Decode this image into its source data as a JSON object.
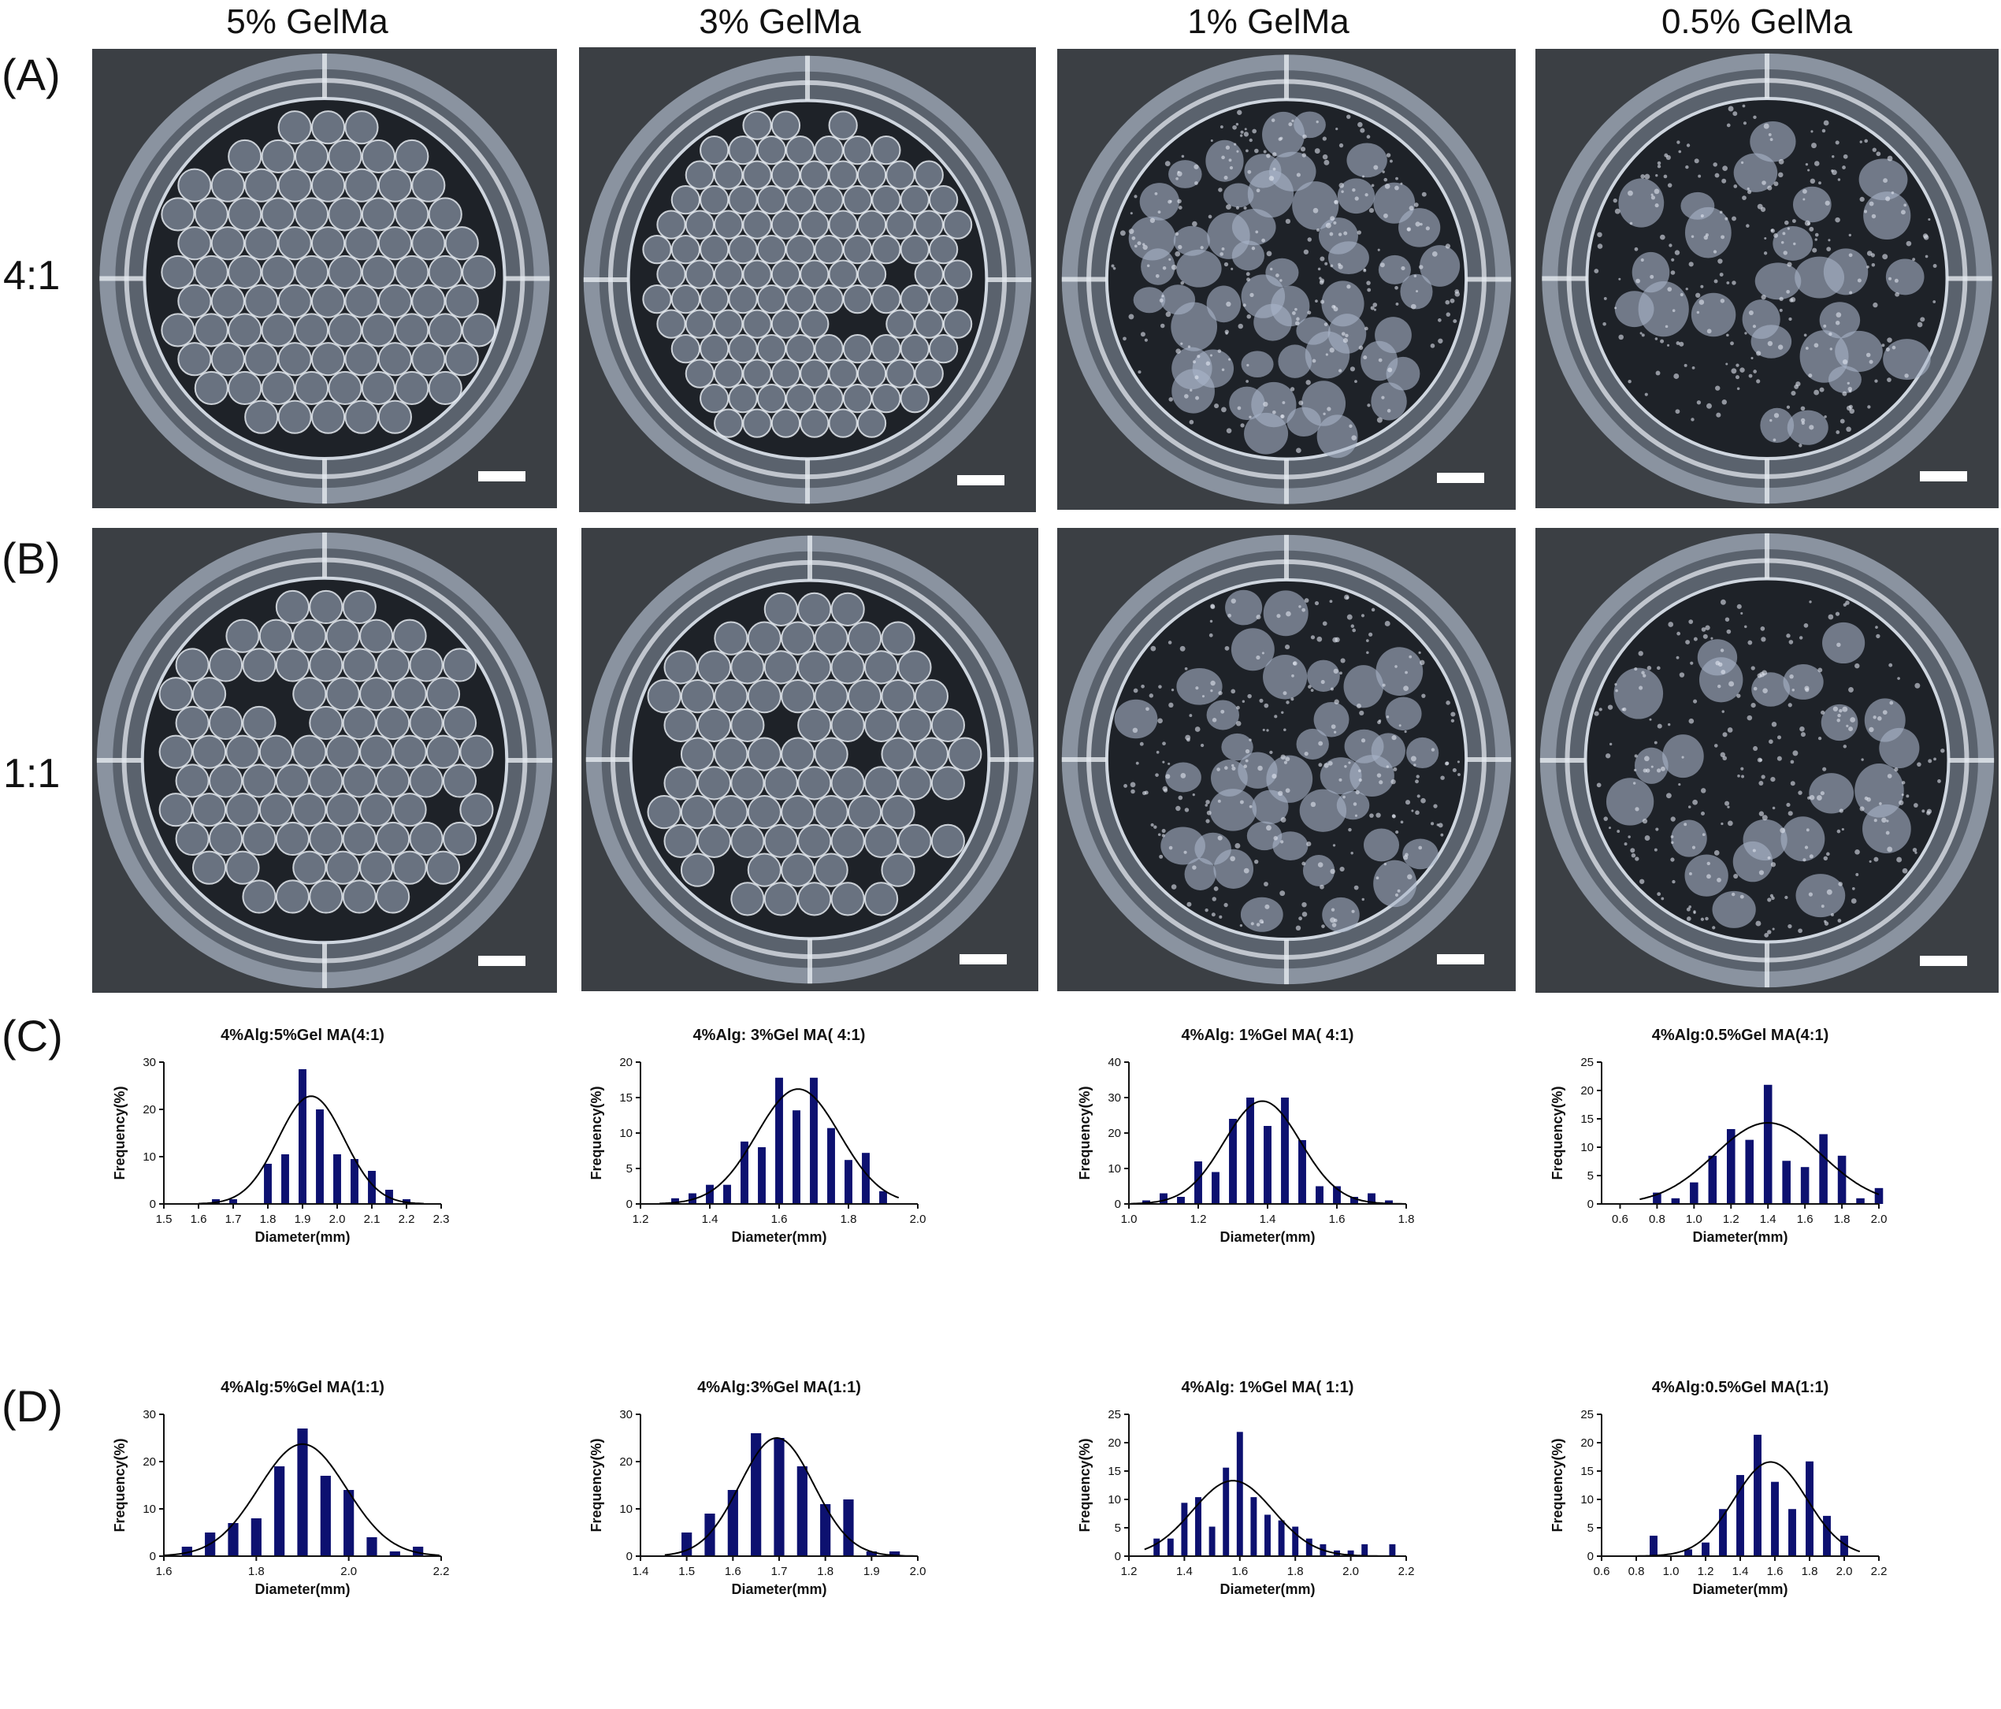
{
  "column_titles": [
    "5% GelMa",
    "3% GelMa",
    "1% GelMa",
    "0.5% GelMa"
  ],
  "panel_labels": {
    "a": "(A)",
    "b": "(B)",
    "c": "(C)",
    "d": "(D)"
  },
  "row_labels": {
    "a": "4:1",
    "b": "1:1"
  },
  "photos": {
    "row_a": [
      {
        "bead_style": "uniform",
        "bead_density": 0.95
      },
      {
        "bead_style": "uniform",
        "bead_density": 0.97
      },
      {
        "bead_style": "irregular",
        "bead_density": 0.85
      },
      {
        "bead_style": "sparse",
        "bead_density": 0.35
      }
    ],
    "row_b": [
      {
        "bead_style": "uniform",
        "bead_density": 0.95
      },
      {
        "bead_style": "uniform",
        "bead_density": 0.95
      },
      {
        "bead_style": "irregular",
        "bead_density": 0.6
      },
      {
        "bead_style": "sparse",
        "bead_density": 0.45
      }
    ]
  },
  "colors": {
    "bar": "#0d1170",
    "fit": "#000000",
    "plate": "#3b3f44",
    "well_fill": "#1e2228",
    "bead": "#a8b4c8"
  },
  "chart_data": [
    {
      "type": "bar",
      "title": "4%Alg:5%Gel MA(4:1)",
      "xlabel": "Diameter(mm)",
      "ylabel": "Frequency(%)",
      "xlim": [
        1.5,
        2.3
      ],
      "ylim": [
        0,
        30
      ],
      "xticks": [
        "1.5",
        "1.6",
        "1.7",
        "1.8",
        "1.9",
        "2.0",
        "2.1",
        "2.2",
        "2.3"
      ],
      "yticks": [
        "0",
        "10",
        "20",
        "30"
      ],
      "x": [
        1.65,
        1.7,
        1.8,
        1.85,
        1.9,
        1.95,
        2.0,
        2.05,
        2.1,
        2.15,
        2.2
      ],
      "values": [
        1,
        1,
        8.5,
        10.5,
        28.5,
        20,
        10.5,
        9.5,
        7,
        3,
        1
      ],
      "fit": {
        "mean": 1.925,
        "sd": 0.095,
        "peak": 22.8
      }
    },
    {
      "type": "bar",
      "title": "4%Alg: 3%Gel MA( 4:1)",
      "xlabel": "Diameter(mm)",
      "ylabel": "Frequency(%)",
      "xlim": [
        1.2,
        2.0
      ],
      "ylim": [
        0,
        20
      ],
      "xticks": [
        "1.2",
        "1.4",
        "1.6",
        "1.8",
        "2.0"
      ],
      "yticks": [
        "0",
        "5",
        "10",
        "15",
        "20"
      ],
      "x": [
        1.3,
        1.35,
        1.4,
        1.45,
        1.5,
        1.55,
        1.6,
        1.65,
        1.7,
        1.75,
        1.8,
        1.85,
        1.9
      ],
      "values": [
        0.8,
        1.5,
        2.7,
        2.7,
        8.8,
        8,
        17.8,
        13.2,
        17.8,
        10.7,
        6.2,
        7.2,
        1.8
      ],
      "fit": {
        "mean": 1.655,
        "sd": 0.12,
        "peak": 16.2
      }
    },
    {
      "type": "bar",
      "title": "4%Alg: 1%Gel MA( 4:1)",
      "xlabel": "Diameter(mm)",
      "ylabel": "Frequency(%)",
      "xlim": [
        1.0,
        1.8
      ],
      "ylim": [
        0,
        40
      ],
      "xticks": [
        "1.0",
        "1.2",
        "1.4",
        "1.6",
        "1.8"
      ],
      "yticks": [
        "0",
        "10",
        "20",
        "30",
        "40"
      ],
      "x": [
        1.05,
        1.1,
        1.15,
        1.2,
        1.25,
        1.3,
        1.35,
        1.4,
        1.45,
        1.5,
        1.55,
        1.6,
        1.65,
        1.7,
        1.75
      ],
      "values": [
        1,
        3,
        2,
        12,
        9,
        24,
        30,
        22,
        30,
        18,
        5,
        5,
        2,
        3,
        1
      ],
      "fit": {
        "mean": 1.385,
        "sd": 0.11,
        "peak": 29
      }
    },
    {
      "type": "bar",
      "title": "4%Alg:0.5%Gel MA(4:1)",
      "xlabel": "Diameter(mm)",
      "ylabel": "Frequency(%)",
      "xlim": [
        0.5,
        2.0
      ],
      "ylim": [
        0,
        25
      ],
      "xticks": [
        "0.6",
        "0.8",
        "1.0",
        "1.2",
        "1.4",
        "1.6",
        "1.8",
        "2.0"
      ],
      "yticks": [
        "0",
        "5",
        "10",
        "15",
        "20",
        "25"
      ],
      "x": [
        0.8,
        0.9,
        1.0,
        1.1,
        1.2,
        1.3,
        1.4,
        1.5,
        1.6,
        1.7,
        1.8,
        1.9,
        2.0
      ],
      "values": [
        2,
        1,
        3.8,
        8.5,
        13.2,
        11.3,
        21,
        7.6,
        6.5,
        12.3,
        8.5,
        1,
        2.8
      ],
      "fit": {
        "mean": 1.4,
        "sd": 0.29,
        "peak": 14.3
      }
    },
    {
      "type": "bar",
      "title": "4%Alg:5%Gel MA(1:1)",
      "xlabel": "Diameter(mm)",
      "ylabel": "Frequency(%)",
      "xlim": [
        1.6,
        2.2
      ],
      "ylim": [
        0,
        30
      ],
      "xticks": [
        "1.6",
        "1.8",
        "2.0",
        "2.2"
      ],
      "yticks": [
        "0",
        "10",
        "20",
        "30"
      ],
      "x": [
        1.65,
        1.7,
        1.75,
        1.8,
        1.85,
        1.9,
        1.95,
        2.0,
        2.05,
        2.1,
        2.15
      ],
      "values": [
        2,
        5,
        7,
        8,
        19,
        27,
        17,
        14,
        4,
        1,
        2
      ],
      "fit": {
        "mean": 1.9,
        "sd": 0.095,
        "peak": 23.7
      }
    },
    {
      "type": "bar",
      "title": "4%Alg:3%Gel MA(1:1)",
      "xlabel": "Diameter(mm)",
      "ylabel": "Frequency(%)",
      "xlim": [
        1.4,
        2.0
      ],
      "ylim": [
        0,
        30
      ],
      "xticks": [
        "1.4",
        "1.5",
        "1.6",
        "1.7",
        "1.8",
        "1.9",
        "2.0"
      ],
      "yticks": [
        "0",
        "10",
        "20",
        "30"
      ],
      "x": [
        1.5,
        1.55,
        1.6,
        1.65,
        1.7,
        1.75,
        1.8,
        1.85,
        1.9,
        1.95
      ],
      "values": [
        5,
        9,
        14,
        26,
        25,
        19,
        11,
        12,
        1,
        1
      ],
      "fit": {
        "mean": 1.695,
        "sd": 0.08,
        "peak": 25
      }
    },
    {
      "type": "bar",
      "title": "4%Alg: 1%Gel MA( 1:1)",
      "xlabel": "Diameter(mm)",
      "ylabel": "Frequency(%)",
      "xlim": [
        1.2,
        2.2
      ],
      "ylim": [
        0,
        25
      ],
      "xticks": [
        "1.2",
        "1.4",
        "1.6",
        "1.8",
        "2.0",
        "2.2"
      ],
      "yticks": [
        "0",
        "5",
        "10",
        "15",
        "20",
        "25"
      ],
      "x": [
        1.3,
        1.35,
        1.4,
        1.45,
        1.5,
        1.55,
        1.6,
        1.65,
        1.7,
        1.75,
        1.8,
        1.85,
        1.9,
        1.95,
        2.0,
        2.05,
        2.1,
        2.15
      ],
      "values": [
        3.1,
        3.1,
        9.4,
        10.4,
        5.2,
        15.6,
        21.9,
        10.4,
        7.3,
        6.3,
        5.2,
        3.1,
        2.1,
        1,
        1,
        2.1,
        0,
        2.1
      ],
      "fit": {
        "mean": 1.575,
        "sd": 0.145,
        "peak": 13.3
      }
    },
    {
      "type": "bar",
      "title": "4%Alg:0.5%Gel MA(1:1)",
      "xlabel": "Diameter(mm)",
      "ylabel": "Frequency(%)",
      "xlim": [
        0.6,
        2.2
      ],
      "ylim": [
        0,
        25
      ],
      "xticks": [
        "0.6",
        "0.8",
        "1.0",
        "1.2",
        "1.4",
        "1.6",
        "1.8",
        "2.0",
        "2.2"
      ],
      "yticks": [
        "0",
        "5",
        "10",
        "15",
        "20",
        "25"
      ],
      "x": [
        0.9,
        1.1,
        1.2,
        1.3,
        1.4,
        1.5,
        1.6,
        1.7,
        1.8,
        1.9,
        2.0
      ],
      "values": [
        3.6,
        1.2,
        2.4,
        8.3,
        14.3,
        21.4,
        13.1,
        8.3,
        16.7,
        7.1,
        3.6
      ],
      "fit": {
        "mean": 1.575,
        "sd": 0.21,
        "peak": 16.6
      }
    }
  ]
}
